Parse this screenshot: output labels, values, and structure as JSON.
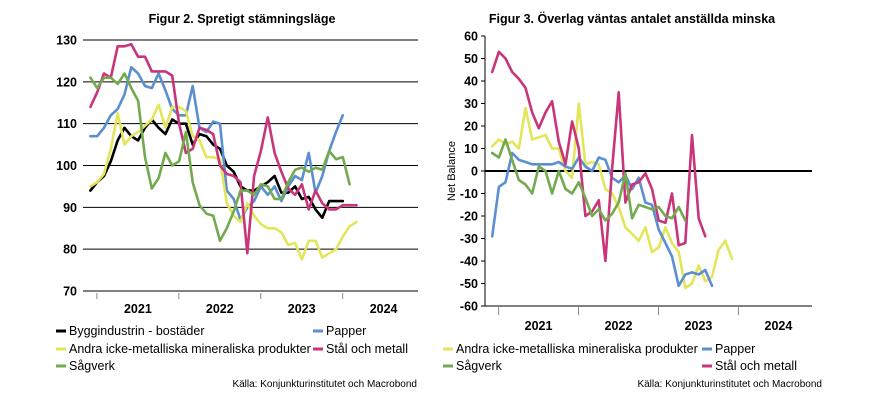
{
  "colors": {
    "byggindustrin": "#000000",
    "papper": "#5b8fd0",
    "andra": "#e3e55a",
    "stal": "#c8357a",
    "sagverk": "#74aa4f",
    "grid": "#000000",
    "axis": "#000000"
  },
  "chart_data": [
    {
      "type": "line",
      "title": "Figur 2. Spretigt stämningsläge",
      "ylim": [
        70,
        130
      ],
      "yticks": [
        70,
        80,
        90,
        100,
        110,
        120,
        130
      ],
      "grid": "horizontal",
      "xlim": [
        2020.33,
        2024.42
      ],
      "year_labels": [
        {
          "label": "2021",
          "x": 2021.0
        },
        {
          "label": "2022",
          "x": 2022.0
        },
        {
          "label": "2023",
          "x": 2023.0
        },
        {
          "label": "2024",
          "x": 2024.0
        }
      ],
      "year_separators": [
        2020.5,
        2021.5,
        2022.5,
        2023.5
      ],
      "x_start": 2020.42,
      "x_step": 0.0833,
      "legend_position": "bottom",
      "series": [
        {
          "name": "Byggindustrin - bostäder",
          "color_key": "byggindustrin",
          "values": [
            94,
            96,
            97.5,
            101,
            106,
            109,
            107,
            106,
            109,
            111,
            109,
            107.5,
            111,
            110,
            110,
            105,
            107.5,
            107,
            105,
            104,
            100,
            98.5,
            95,
            94,
            94,
            95,
            96,
            97.5,
            93.5,
            93.5,
            95,
            92,
            92.5,
            89.5,
            87.5,
            91.5,
            91.5,
            91.5
          ]
        },
        {
          "name": "Papper",
          "color_key": "papper",
          "values": [
            107,
            107,
            109,
            112,
            113.5,
            117,
            123.5,
            122,
            119,
            118.5,
            122,
            118,
            113.5,
            112,
            112,
            119,
            109,
            108,
            110.5,
            110,
            94,
            92,
            87,
            90,
            91.5,
            95,
            93,
            95,
            91.5,
            95,
            97.5,
            96.5,
            103,
            93.5,
            97.5,
            103.5,
            108,
            112
          ]
        },
        {
          "name": "Andra icke-metalliska mineraliska produkter",
          "color_key": "andra",
          "values": [
            95,
            96,
            98,
            104,
            112.5,
            105,
            107,
            108,
            109.5,
            111,
            114.5,
            109,
            114,
            114,
            113,
            107,
            106,
            102,
            102,
            101.5,
            91,
            88,
            86.5,
            91,
            88,
            86,
            85,
            85,
            84,
            81,
            81.5,
            77.5,
            82,
            82,
            78,
            79,
            80,
            83,
            85.5,
            86.5
          ]
        },
        {
          "name": "Stål och metall",
          "color_key": "stal",
          "values": [
            114,
            117.5,
            122,
            121,
            128.5,
            128.5,
            129,
            126,
            126,
            122.5,
            122.5,
            122.5,
            121.5,
            110,
            103,
            104,
            109,
            108.5,
            107.5,
            100,
            98,
            97.5,
            96,
            79,
            97.5,
            103.5,
            111.5,
            103,
            98.5,
            94.5,
            93,
            95.5,
            89.5,
            94,
            91,
            89.5,
            89.5,
            90.5,
            90.5,
            90.5
          ]
        },
        {
          "name": "Sågverk",
          "color_key": "sagverk",
          "values": [
            121,
            118.5,
            121,
            121,
            119.5,
            122,
            118.5,
            115.5,
            102,
            94.5,
            97,
            103,
            100,
            101,
            108,
            96,
            90.5,
            88.5,
            88,
            82,
            85,
            89,
            94,
            94,
            93,
            95.5,
            95,
            92,
            92,
            96,
            99,
            99.5,
            98.5,
            99.5,
            99,
            103.5,
            101.5,
            102,
            95.5
          ]
        }
      ]
    },
    {
      "type": "line",
      "title": "Figur 3. Överlag väntas antalet anställda minska",
      "ylabel": "Net Balance",
      "ylim": [
        -60,
        60
      ],
      "yticks": [
        -60,
        -50,
        -40,
        -30,
        -20,
        -10,
        0,
        10,
        20,
        30,
        40,
        50,
        60
      ],
      "grid": "none",
      "zero_line": true,
      "xlim": [
        2020.33,
        2024.42
      ],
      "year_labels": [
        {
          "label": "2021",
          "x": 2021.0
        },
        {
          "label": "2022",
          "x": 2022.0
        },
        {
          "label": "2023",
          "x": 2023.0
        },
        {
          "label": "2024",
          "x": 2024.0
        }
      ],
      "year_separators": [
        2020.5,
        2021.5,
        2022.5,
        2023.5
      ],
      "x_start": 2020.42,
      "x_step": 0.0833,
      "legend_position": "bottom",
      "series": [
        {
          "name": "Andra icke-metalliska mineraliska produkter",
          "color_key": "andra",
          "values": [
            11,
            14,
            12,
            13,
            10,
            28,
            14,
            15,
            16,
            10,
            10,
            0,
            -3,
            30,
            3,
            4,
            3,
            -8,
            -10,
            -16,
            -25,
            -28,
            -31,
            -25,
            -36,
            -34,
            -25,
            -32,
            -36,
            -52,
            -50,
            -42,
            -49,
            -47,
            -35,
            -31,
            -39
          ]
        },
        {
          "name": "Papper",
          "color_key": "papper",
          "values": [
            -29,
            -7,
            -5,
            8,
            5,
            4,
            3,
            3,
            3,
            3,
            4,
            2,
            1,
            6,
            2,
            0,
            6,
            5,
            -3,
            -5,
            -2,
            -8,
            -3,
            -14,
            -15,
            -26,
            -32,
            -38,
            -51,
            -46,
            -45,
            -46,
            -44,
            -51
          ]
        },
        {
          "name": "Stål och metall",
          "color_key": "stal",
          "values": [
            44,
            53,
            50,
            44,
            41,
            37,
            26,
            19,
            26,
            31,
            13,
            3,
            22,
            10,
            -20,
            -18,
            -13,
            -40,
            1,
            35,
            -14,
            -6,
            -5,
            -1,
            -8,
            -22,
            -23,
            -10,
            -33,
            -32,
            16,
            -21,
            -29
          ]
        },
        {
          "name": "Sågverk",
          "color_key": "sagverk",
          "values": [
            8,
            6,
            14,
            5,
            -4,
            -6,
            -10,
            2,
            0,
            -10,
            0,
            -8,
            -10,
            -5,
            -12,
            -20,
            -17,
            -22,
            -19,
            -14,
            -1,
            -21,
            -15,
            -16,
            -17,
            -16,
            -20,
            -21,
            -16,
            -22
          ]
        }
      ]
    }
  ],
  "legend_left": {
    "byggindustrin": "Byggindustrin - bostäder",
    "papper": "Papper",
    "andra": "Andra icke-metalliska mineraliska produkter",
    "stal": "Stål och metall",
    "sagverk": "Sågverk"
  },
  "legend_right": {
    "andra": "Andra icke-metalliska mineraliska produkter",
    "papper": "Papper",
    "stal": "Stål och metall",
    "sagverk": "Sågverk"
  },
  "source_left": "Källa: Konjunkturinstitutet och Macrobond",
  "source_right": "Källa: Konjunkturinstitutet och Macrobond"
}
